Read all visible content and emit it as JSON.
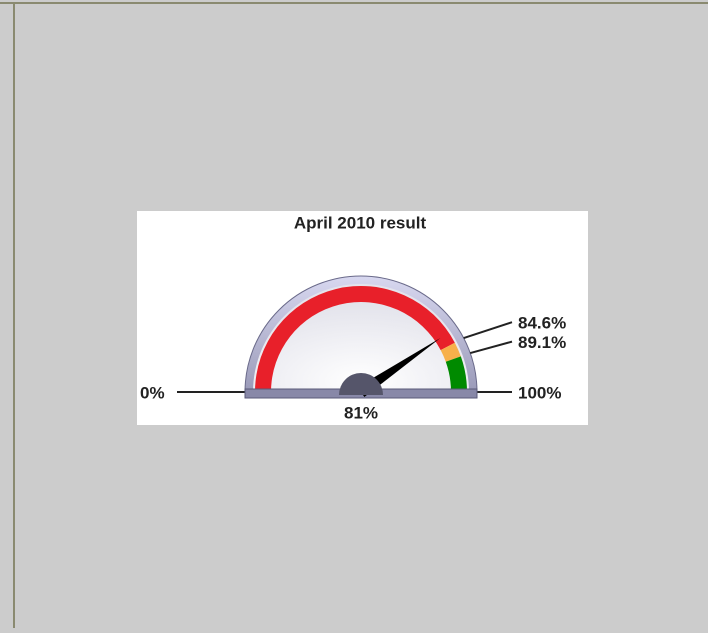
{
  "chart_data": {
    "type": "gauge",
    "title": "April 2010 result",
    "value": 81,
    "value_label": "81%",
    "range": [
      0,
      100
    ],
    "ticks": [
      {
        "value": 0,
        "label": "0%"
      },
      {
        "value": 84.6,
        "label": "84.6%"
      },
      {
        "value": 89.1,
        "label": "89.1%"
      },
      {
        "value": 100,
        "label": "100%"
      }
    ],
    "band_colors": [
      "#e8202a",
      "#f7b04b",
      "#008a00"
    ],
    "needle_color": "#000000"
  }
}
